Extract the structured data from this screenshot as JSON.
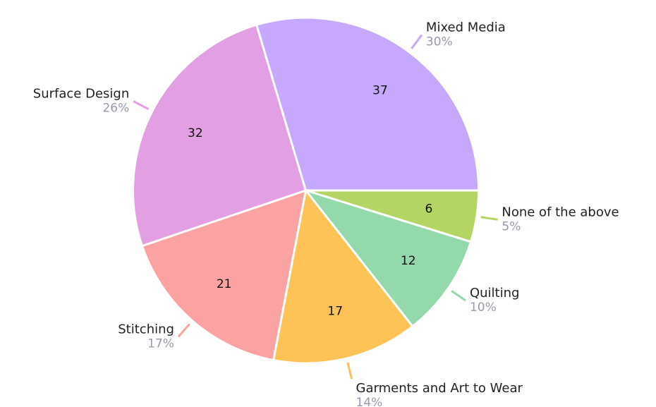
{
  "chart_data": {
    "type": "pie",
    "categories": [
      "None of the above",
      "Quilting",
      "Garments and Art to Wear",
      "Stitching",
      "Surface Design",
      "Mixed Media"
    ],
    "values": [
      6,
      12,
      17,
      21,
      32,
      37
    ],
    "percent_labels": [
      "5%",
      "10%",
      "14%",
      "17%",
      "26%",
      "30%"
    ],
    "colors": [
      "#b2d563",
      "#94d9ac",
      "#ffc257",
      "#fba3a3",
      "#e39fe3",
      "#c6a8ff"
    ]
  }
}
